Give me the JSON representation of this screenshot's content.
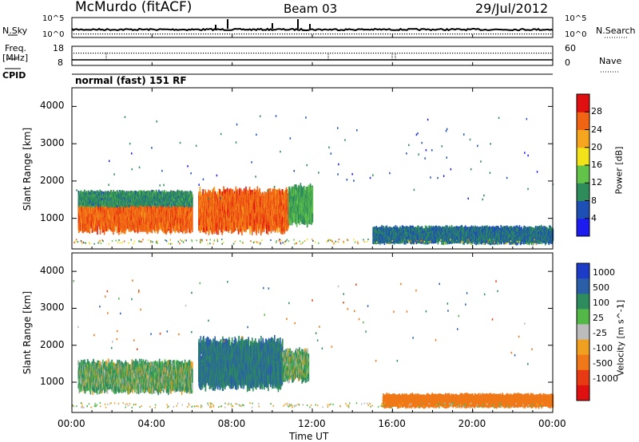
{
  "header": {
    "station": "McMurdo (fitACF)",
    "beam": "Beam 03",
    "date": "29/Jul/2012"
  },
  "status_panels": {
    "nsky_label": "N.Sky",
    "nsearch_label": "N.Search",
    "nsky_ticks": [
      "10^5",
      "10^0"
    ],
    "nsearch_ticks": [
      "10^5",
      "10^0"
    ],
    "freq_label_line1": "Freq.",
    "freq_label_line2": "[MHz]",
    "freq_ticks": [
      "18",
      "8"
    ],
    "nave_label": "Nave",
    "nave_ticks": [
      "60",
      "0"
    ],
    "cpid_label": "CPID",
    "cpid_text": "normal (fast) 151 RF"
  },
  "axes": {
    "ylabel": "Slant Range [km]",
    "yticks": [
      "1000",
      "2000",
      "3000",
      "4000"
    ],
    "xticks": [
      "00:00",
      "04:00",
      "08:00",
      "12:00",
      "16:00",
      "20:00",
      "00:00"
    ],
    "xlabel": "Time UT"
  },
  "colorbars": {
    "power": {
      "label": "Power [dB]",
      "ticks": [
        "4",
        "8",
        "12",
        "16",
        "20",
        "24",
        "28"
      ],
      "colors": [
        "#1c1cf0",
        "#1e4fb4",
        "#2d8c5a",
        "#63c24a",
        "#f2e21a",
        "#f5a51e",
        "#f06414",
        "#e01010"
      ]
    },
    "velocity": {
      "label": "Velocity [m s^-1]",
      "ticks": [
        "1000",
        "500",
        "100",
        "25",
        "-25",
        "-100",
        "-500",
        "-1000"
      ],
      "colors": [
        "#1c3cc8",
        "#2a5fa8",
        "#2e8b5e",
        "#54b848",
        "#bcbcbc",
        "#f0a020",
        "#f07818",
        "#e83a12",
        "#e01010"
      ]
    }
  },
  "chart_data": {
    "type": "heatmap",
    "x_range": [
      "00:00",
      "24:00"
    ],
    "y_range_km": [
      180,
      4500
    ],
    "panels": [
      {
        "name": "Power",
        "units": "dB",
        "scale": [
          0,
          32
        ],
        "patches": [
          {
            "t0": 0.3,
            "t1": 6.0,
            "r0": 600,
            "r1": 1700,
            "value": 26
          },
          {
            "t0": 0.3,
            "t1": 6.0,
            "r0": 1300,
            "r1": 1750,
            "value": 10
          },
          {
            "t0": 6.3,
            "t1": 10.8,
            "r0": 600,
            "r1": 1800,
            "value": 26
          },
          {
            "t0": 10.8,
            "t1": 12.0,
            "r0": 800,
            "r1": 1900,
            "value": 12
          },
          {
            "t0": 15.0,
            "t1": 24.0,
            "r0": 300,
            "r1": 800,
            "value": 8
          }
        ]
      },
      {
        "name": "Velocity",
        "units": "m/s",
        "scale": [
          -1000,
          1000
        ],
        "patches": [
          {
            "t0": 0.3,
            "t1": 6.0,
            "r0": 700,
            "r1": 1600,
            "value": 100
          },
          {
            "t0": 6.3,
            "t1": 10.5,
            "r0": 800,
            "r1": 2200,
            "value": 500
          },
          {
            "t0": 10.5,
            "t1": 11.8,
            "r0": 1000,
            "r1": 1900,
            "value": 100
          },
          {
            "t0": 15.5,
            "t1": 24.0,
            "r0": 300,
            "r1": 700,
            "value": -300
          }
        ]
      }
    ]
  }
}
